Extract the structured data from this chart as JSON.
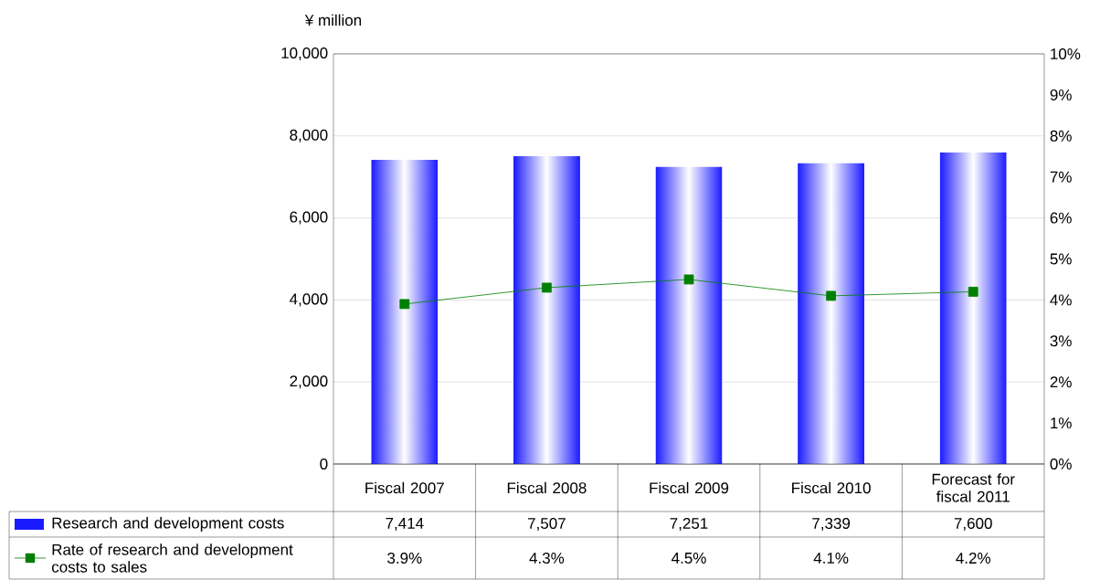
{
  "chart_data": {
    "type": "bar",
    "ylabel": "¥ million",
    "categories": [
      "Fiscal 2007",
      "Fiscal 2008",
      "Fiscal 2009",
      "Fiscal 2010",
      "Forecast for fiscal 2011"
    ],
    "series": [
      {
        "name": "Research and development costs",
        "color": "#1a1aff",
        "values": [
          7414,
          7507,
          7251,
          7339,
          7600
        ],
        "value_labels": [
          "7,414",
          "7,507",
          "7,251",
          "7,339",
          "7,600"
        ]
      },
      {
        "name": "Rate of research and development costs to sales",
        "type": "line",
        "axis": "y2",
        "color": "#008000",
        "marker": "square",
        "values": [
          3.9,
          4.3,
          4.5,
          4.1,
          4.2
        ],
        "value_labels": [
          "3.9%",
          "4.3%",
          "4.5%",
          "4.1%",
          "4.2%"
        ]
      }
    ],
    "ylim": [
      0,
      10000
    ],
    "yticks": [
      0,
      {
        "value": 2000,
        "label": "2,000"
      },
      {
        "value": 4000,
        "label": "4,000"
      },
      {
        "value": 6000,
        "label": "6,000"
      },
      {
        "value": 8000,
        "label": "8,000"
      },
      {
        "value": 10000,
        "label": "10,000"
      }
    ],
    "y2lim": [
      0,
      10
    ],
    "y2ticks": [
      {
        "value": 0,
        "label": "0%"
      },
      {
        "value": 1,
        "label": "1%"
      },
      {
        "value": 2,
        "label": "2%"
      },
      {
        "value": 3,
        "label": "3%"
      },
      {
        "value": 4,
        "label": "4%"
      },
      {
        "value": 5,
        "label": "5%"
      },
      {
        "value": 6,
        "label": "6%"
      },
      {
        "value": 7,
        "label": "7%"
      },
      {
        "value": 8,
        "label": "8%"
      },
      {
        "value": 9,
        "label": "9%"
      },
      {
        "value": 10,
        "label": "10%"
      }
    ],
    "grid": "y",
    "legend": "bottom"
  }
}
